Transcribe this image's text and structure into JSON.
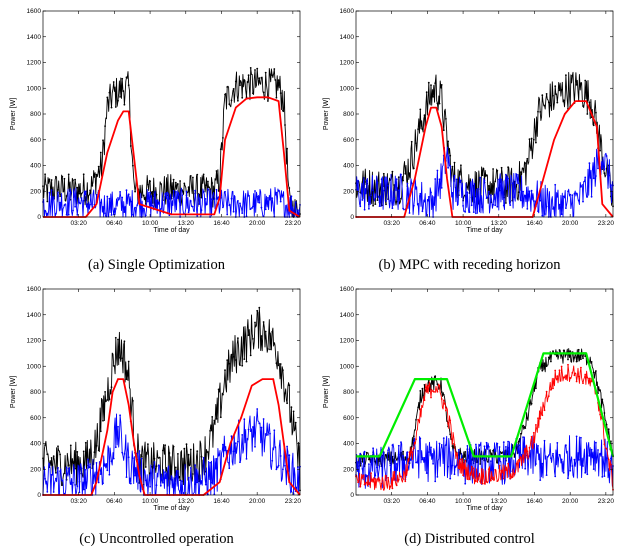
{
  "chart_data": [
    {
      "type": "line",
      "caption": "(a) Single Optimization",
      "xlabel": "Time of day",
      "ylabel": "Power [W]",
      "xlim": [
        0,
        24
      ],
      "ylim": [
        0,
        1600
      ],
      "x_tick_values": [
        3.333,
        6.667,
        10.0,
        13.333,
        16.667,
        20.0,
        23.333
      ],
      "x_tick_labels": [
        "03:20",
        "06:40",
        "10:00",
        "13:20",
        "16:40",
        "20:00",
        "23:20"
      ],
      "y_ticks": [
        0,
        200,
        400,
        600,
        800,
        1000,
        1200,
        1400,
        1600
      ],
      "series": [
        {
          "color": "#000000",
          "marker": "dot",
          "noise": 130,
          "fill": "black",
          "x": [
            0,
            1.5,
            3,
            4.5,
            5.5,
            6.0,
            6.5,
            7.0,
            7.5,
            8.0,
            8.5,
            10,
            13,
            16,
            16.5,
            17.0,
            18.0,
            19.0,
            20.0,
            21.0,
            22.0,
            22.5,
            23.0,
            24
          ],
          "y": [
            200,
            220,
            200,
            230,
            400,
            850,
            950,
            970,
            1000,
            1000,
            200,
            200,
            210,
            200,
            300,
            900,
            1020,
            1030,
            1030,
            1030,
            1020,
            900,
            100,
            0
          ]
        },
        {
          "color": "#0000ff",
          "marker": "dot",
          "noise": 120,
          "x": [
            0,
            2,
            4,
            6,
            8,
            10,
            12,
            14,
            16,
            18,
            20,
            22,
            24
          ],
          "y": [
            100,
            120,
            110,
            80,
            100,
            100,
            110,
            100,
            100,
            100,
            100,
            120,
            50
          ]
        },
        {
          "color": "#ff0000",
          "marker": "none",
          "noise": 0,
          "x": [
            0,
            4,
            5,
            6,
            7,
            7.5,
            8.0,
            9,
            12,
            16,
            16.5,
            17,
            18,
            19,
            20,
            21,
            22,
            22.5,
            23,
            24
          ],
          "y": [
            0,
            0,
            100,
            500,
            750,
            820,
            820,
            100,
            20,
            20,
            150,
            600,
            850,
            920,
            930,
            930,
            900,
            500,
            50,
            0
          ]
        }
      ]
    },
    {
      "type": "line",
      "caption": "(b) MPC with receding horizon",
      "xlabel": "Time of day",
      "ylabel": "Power [W]",
      "xlim": [
        0,
        24
      ],
      "ylim": [
        0,
        1600
      ],
      "x_tick_values": [
        3.333,
        6.667,
        10.0,
        13.333,
        16.667,
        20.0,
        23.333
      ],
      "x_tick_labels": [
        "03:20",
        "06:40",
        "10:00",
        "13:20",
        "16:40",
        "20:00",
        "23:20"
      ],
      "y_ticks": [
        0,
        200,
        400,
        600,
        800,
        1000,
        1200,
        1400,
        1600
      ],
      "series": [
        {
          "color": "#000000",
          "marker": "dot",
          "noise": 150,
          "x": [
            0,
            2,
            4,
            5,
            6,
            7,
            7.5,
            8,
            9,
            11,
            13,
            15,
            16,
            17,
            18,
            19,
            20,
            21,
            22,
            23,
            24
          ],
          "y": [
            250,
            230,
            240,
            400,
            700,
            950,
            1000,
            900,
            300,
            240,
            240,
            250,
            400,
            800,
            900,
            950,
            1000,
            1000,
            900,
            500,
            100
          ]
        },
        {
          "color": "#0000ff",
          "marker": "dot",
          "noise": 150,
          "x": [
            0,
            2,
            4,
            6,
            7,
            8,
            8.5,
            9,
            10,
            12,
            14,
            16,
            18,
            20,
            21,
            22,
            23,
            24
          ],
          "y": [
            200,
            180,
            200,
            150,
            100,
            300,
            500,
            200,
            180,
            170,
            200,
            180,
            100,
            100,
            150,
            300,
            500,
            200
          ]
        },
        {
          "color": "#ff0000",
          "marker": "dot",
          "noise": 0,
          "x": [
            0,
            4.5,
            5.5,
            6.5,
            7.0,
            7.5,
            8.0,
            8.5,
            9.0,
            16.5,
            17.5,
            18.5,
            19.5,
            20.5,
            21.5,
            22.5,
            23.0,
            24
          ],
          "y": [
            0,
            0,
            300,
            700,
            850,
            850,
            700,
            300,
            0,
            0,
            300,
            600,
            800,
            900,
            900,
            700,
            100,
            0
          ]
        }
      ]
    },
    {
      "type": "line",
      "caption": "(c) Uncontrolled operation",
      "xlabel": "Time of day",
      "ylabel": "Power [W]",
      "xlim": [
        0,
        24
      ],
      "ylim": [
        0,
        1600
      ],
      "x_tick_values": [
        3.333,
        6.667,
        10.0,
        13.333,
        16.667,
        20.0,
        23.333
      ],
      "x_tick_labels": [
        "03:20",
        "06:40",
        "10:00",
        "13:20",
        "16:40",
        "20:00",
        "23:20"
      ],
      "y_ticks": [
        0,
        200,
        400,
        600,
        800,
        1000,
        1200,
        1400,
        1600
      ],
      "series": [
        {
          "color": "#000000",
          "marker": "dot",
          "noise": 170,
          "x": [
            0,
            2,
            4,
            5,
            6,
            6.5,
            7,
            7.5,
            8,
            8.5,
            9,
            10,
            12,
            14,
            15,
            16,
            17,
            18,
            19,
            20,
            21,
            22,
            23,
            24
          ],
          "y": [
            250,
            240,
            250,
            400,
            800,
            1000,
            1150,
            1100,
            900,
            500,
            250,
            240,
            230,
            240,
            300,
            500,
            900,
            1100,
            1200,
            1300,
            1250,
            1100,
            700,
            200
          ]
        },
        {
          "color": "#0000ff",
          "marker": "dot",
          "noise": 170,
          "x": [
            0,
            2,
            4,
            6,
            7,
            8,
            10,
            12,
            14,
            16,
            17,
            18,
            19,
            20,
            21,
            22,
            23,
            24
          ],
          "y": [
            100,
            100,
            100,
            250,
            500,
            250,
            100,
            100,
            100,
            150,
            300,
            400,
            450,
            500,
            400,
            300,
            200,
            80
          ]
        },
        {
          "color": "#ff0000",
          "marker": "dot",
          "noise": 0,
          "x": [
            0,
            4.5,
            5,
            5.5,
            6,
            6.5,
            7,
            7.5,
            8,
            8.5,
            9,
            9.5,
            15,
            16.5,
            17.5,
            18.5,
            19.5,
            20.5,
            21.5,
            22,
            22.5,
            23,
            24
          ],
          "y": [
            0,
            0,
            100,
            300,
            500,
            800,
            900,
            900,
            700,
            400,
            150,
            0,
            0,
            100,
            400,
            600,
            850,
            900,
            900,
            700,
            400,
            100,
            0
          ]
        }
      ]
    },
    {
      "type": "line",
      "caption": "(d) Distributed control",
      "xlabel": "Time of day",
      "ylabel": "Power [W]",
      "xlim": [
        0,
        24
      ],
      "ylim": [
        0,
        1600
      ],
      "x_tick_values": [
        3.333,
        6.667,
        10.0,
        13.333,
        16.667,
        20.0,
        23.333
      ],
      "x_tick_labels": [
        "03:20",
        "06:40",
        "10:00",
        "13:20",
        "16:40",
        "20:00",
        "23:20"
      ],
      "y_ticks": [
        0,
        200,
        400,
        600,
        800,
        1000,
        1200,
        1400,
        1600
      ],
      "series": [
        {
          "color": "#000000",
          "marker": "dot",
          "noise": 60,
          "x": [
            0,
            2,
            4,
            5,
            5.5,
            6,
            6.5,
            7.5,
            8,
            8.5,
            9,
            10,
            12,
            14,
            15,
            16,
            17,
            18,
            19,
            20,
            21,
            22,
            23,
            24
          ],
          "y": [
            270,
            280,
            280,
            300,
            500,
            750,
            850,
            870,
            850,
            600,
            350,
            300,
            300,
            300,
            350,
            600,
            950,
            1050,
            1080,
            1080,
            1080,
            1050,
            700,
            300
          ]
        },
        {
          "color": "#0000ff",
          "marker": "dot",
          "noise": 170,
          "x": [
            0,
            2,
            4,
            6,
            7,
            8,
            10,
            12,
            14,
            16,
            18,
            20,
            21,
            22,
            23,
            24
          ],
          "y": [
            200,
            200,
            250,
            300,
            250,
            300,
            250,
            250,
            250,
            300,
            250,
            300,
            300,
            350,
            300,
            200
          ]
        },
        {
          "color": "#ff0000",
          "marker": "dot",
          "noise": 70,
          "x": [
            0,
            3,
            4.5,
            5.5,
            6.5,
            7.5,
            8.5,
            9.5,
            11,
            13,
            15,
            16.5,
            17.5,
            18.5,
            19.5,
            20.5,
            21.5,
            22.5,
            23.5,
            24
          ],
          "y": [
            100,
            100,
            150,
            400,
            800,
            850,
            650,
            250,
            150,
            150,
            200,
            400,
            700,
            900,
            950,
            950,
            900,
            800,
            300,
            100
          ]
        },
        {
          "color": "#00ee00",
          "marker": "none",
          "noise": 0,
          "width": 2.2,
          "x": [
            0,
            2.2,
            5.5,
            8.5,
            11,
            13.5,
            14.5,
            17.5,
            21.5,
            24
          ],
          "y": [
            300,
            300,
            900,
            900,
            300,
            300,
            300,
            1100,
            1100,
            300
          ]
        }
      ]
    }
  ]
}
